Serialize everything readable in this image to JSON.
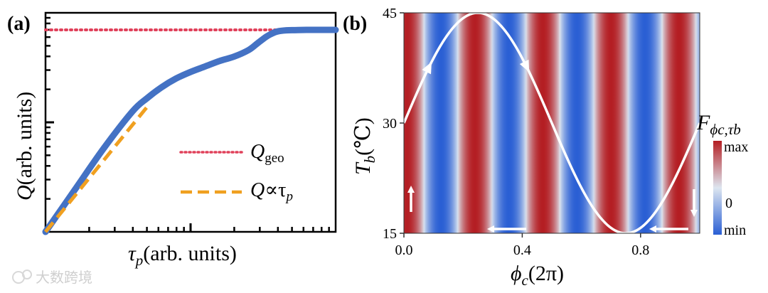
{
  "watermark": "大数跨境",
  "chart_data": [
    {
      "panel": "(a)",
      "type": "line",
      "xlabel_sym": "τ",
      "xlabel_sub": "p",
      "xlabel_unit": "(arb. units)",
      "ylabel_sym": "Q",
      "ylabel_unit": "(arb. units)",
      "xscale": "log",
      "yscale": "log",
      "xlim": [
        0,
        1
      ],
      "ylim": [
        0,
        1
      ],
      "series": [
        {
          "name": "Q",
          "color": "#4472c4",
          "style": "solid",
          "x": [
            0.0,
            0.1,
            0.2,
            0.3,
            0.35,
            0.4,
            0.45,
            0.5,
            0.55,
            0.6,
            0.65,
            0.7,
            0.73,
            0.76,
            0.78,
            0.8,
            0.83,
            0.86,
            0.9,
            1.0
          ],
          "y": [
            0.0,
            0.19,
            0.38,
            0.55,
            0.61,
            0.66,
            0.7,
            0.73,
            0.755,
            0.78,
            0.8,
            0.83,
            0.86,
            0.89,
            0.905,
            0.915,
            0.92,
            0.921,
            0.922,
            0.922
          ]
        },
        {
          "name": "Q∝τp",
          "color": "#f0a020",
          "style": "dashed",
          "x": [
            0.0,
            0.35
          ],
          "y": [
            0.0,
            0.57
          ]
        },
        {
          "name": "Qgeo",
          "color": "#e0405a",
          "style": "dotted",
          "x": [
            0.0,
            1.0
          ],
          "y": [
            0.922,
            0.922
          ]
        }
      ],
      "legend": [
        {
          "sym": "Q",
          "sub": "geo",
          "extra": "",
          "color": "#e0405a",
          "style": "dotted"
        },
        {
          "sym": "Q",
          "sub": "p",
          "extra": "∝τ",
          "color": "#f0a020",
          "style": "dashed"
        }
      ],
      "legend_position": "center-right"
    },
    {
      "panel": "(b)",
      "type": "heatmap",
      "xlabel_sym": "ϕ",
      "xlabel_sub": "c",
      "xlabel_unit": "(2π)",
      "ylabel_sym": "T",
      "ylabel_sub": "b",
      "ylabel_unit": "(℃)",
      "xlim": [
        0,
        1
      ],
      "ylim": [
        15,
        45
      ],
      "xticks": [
        "0.0",
        "0.4",
        "0.8"
      ],
      "xtick_values": [
        0.0,
        0.4,
        0.8
      ],
      "yticks": [
        "15",
        "30",
        "45"
      ],
      "ytick_values": [
        15,
        30,
        45
      ],
      "field": "F ∝ cos(2π·ϕc/0.23), fringes uniform along Tb",
      "fringe_period": 0.23,
      "fringe_max_positions": [
        0.01,
        0.24,
        0.47,
        0.7,
        0.93
      ],
      "colormap": {
        "max_color": "#b41e23",
        "zero_color": "#dde6f0",
        "min_color": "#2a5fd4"
      },
      "colorbar": {
        "title_sym": "F",
        "title_sub": "ϕc,τb",
        "labels": [
          "max",
          "0",
          "min"
        ]
      },
      "path": {
        "color": "#ffffff",
        "description": "Tb = 30 + 15·sin(2π·ϕc)",
        "phi": [
          0.0,
          0.125,
          0.25,
          0.375,
          0.5,
          0.625,
          0.75,
          0.875,
          1.0
        ],
        "tb": [
          30,
          40.6,
          45,
          40.6,
          30,
          19.4,
          15,
          19.4,
          30
        ]
      }
    }
  ]
}
